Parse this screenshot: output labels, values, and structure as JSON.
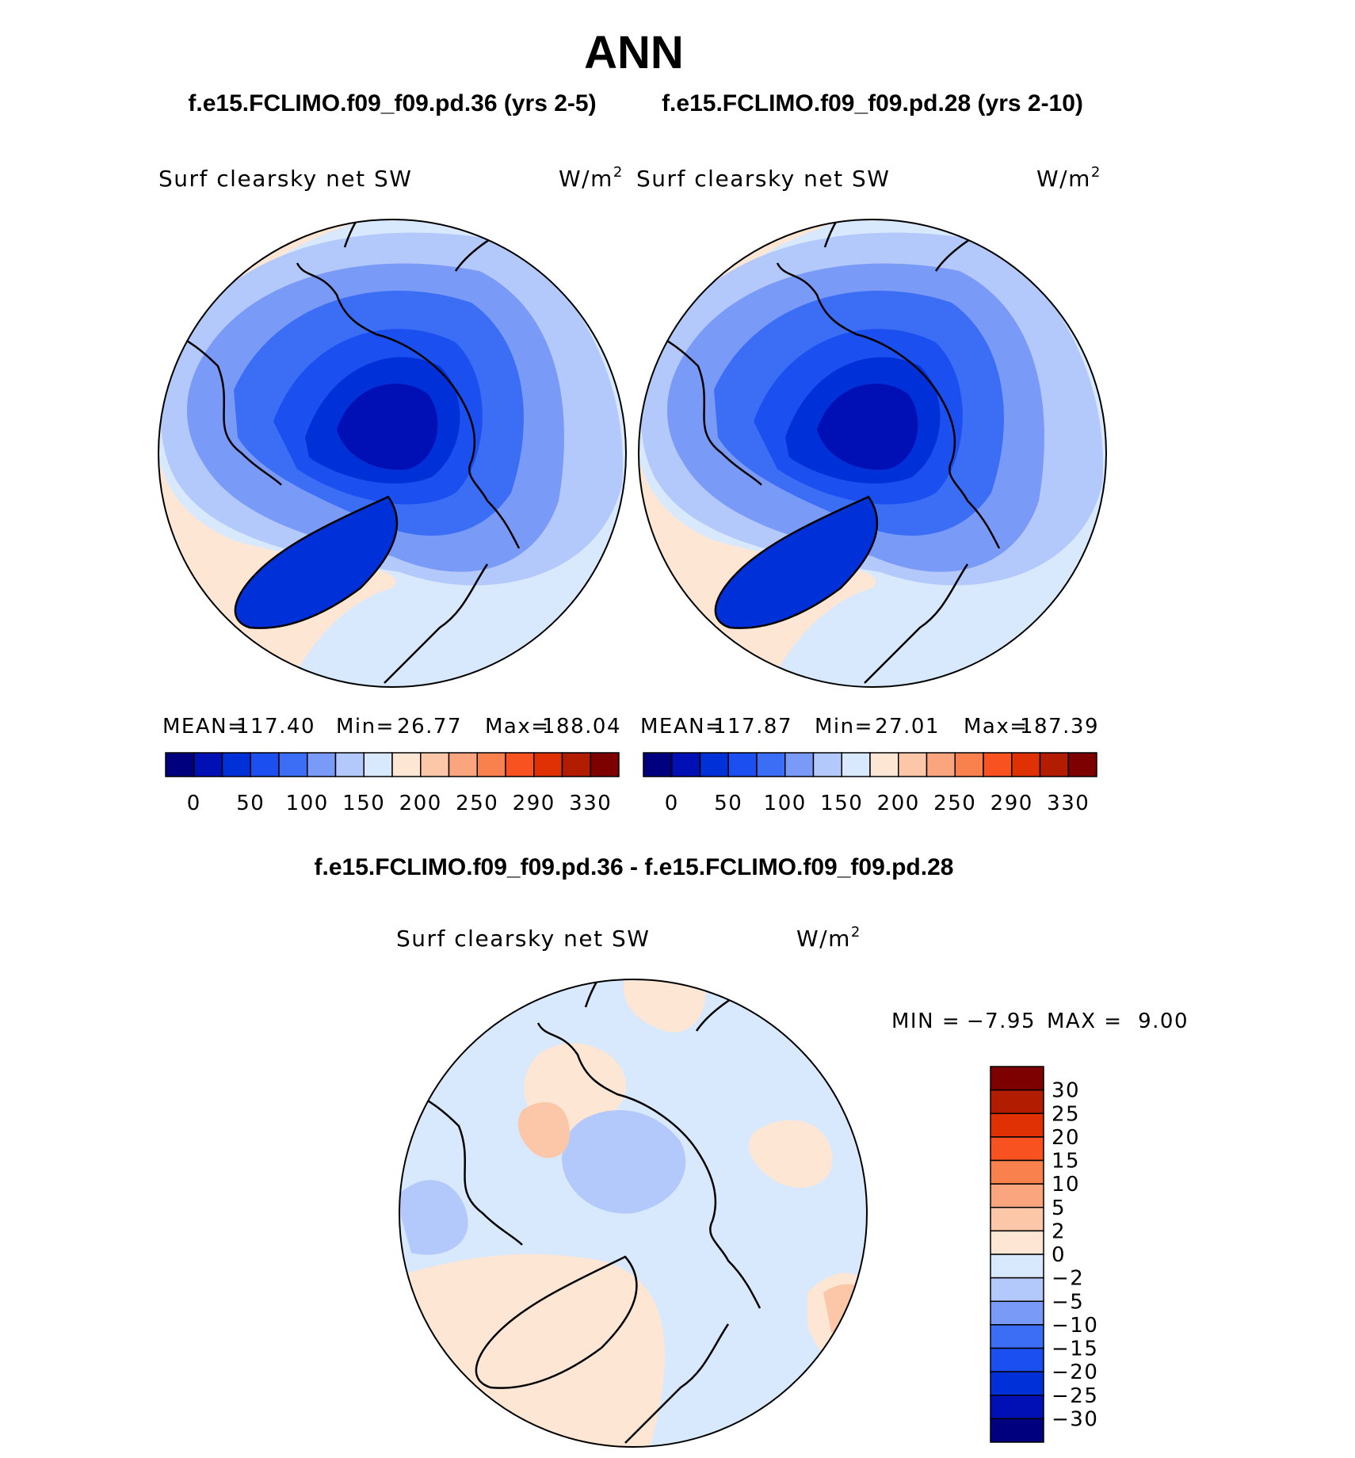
{
  "figure": {
    "title": "ANN",
    "case1_title": "f.e15.FCLIMO.f09_f09.pd.36 (yrs 2-5)",
    "case2_title": "f.e15.FCLIMO.f09_f09.pd.28 (yrs 2-10)",
    "diff_title": "f.e15.FCLIMO.f09_f09.pd.36 - f.e15.FCLIMO.f09_f09.pd.28"
  },
  "chart_data": [
    {
      "type": "heatmap",
      "projection": "north polar stereographic",
      "variable": "Surf clearsky net SW",
      "units_base": "W/m",
      "units_exp": "2",
      "stats": {
        "mean_label": "MEAN=",
        "mean": "117.40",
        "min_label": "Min=",
        "min": "26.77",
        "max_label": "Max=",
        "max": "188.04"
      },
      "colorbar": {
        "orientation": "horizontal",
        "tick_labels": [
          "0",
          "50",
          "100",
          "150",
          "200",
          "250",
          "290",
          "330"
        ],
        "colors": [
          "#00007f",
          "#0010b4",
          "#0030d8",
          "#1b4ff0",
          "#3b6ef5",
          "#7a9af8",
          "#b3c8fb",
          "#d8e8fd",
          "#fde6d3",
          "#fcc7a8",
          "#fba57f",
          "#f9814e",
          "#f7521f",
          "#df3104",
          "#b21d01",
          "#7e0101"
        ]
      }
    },
    {
      "type": "heatmap",
      "projection": "north polar stereographic",
      "variable": "Surf clearsky net SW",
      "units_base": "W/m",
      "units_exp": "2",
      "stats": {
        "mean_label": "MEAN=",
        "mean": "117.87",
        "min_label": "Min=",
        "min": "27.01",
        "max_label": "Max=",
        "max": "187.39"
      },
      "colorbar": {
        "orientation": "horizontal",
        "tick_labels": [
          "0",
          "50",
          "100",
          "150",
          "200",
          "250",
          "290",
          "330"
        ],
        "colors": [
          "#00007f",
          "#0010b4",
          "#0030d8",
          "#1b4ff0",
          "#3b6ef5",
          "#7a9af8",
          "#b3c8fb",
          "#d8e8fd",
          "#fde6d3",
          "#fcc7a8",
          "#fba57f",
          "#f9814e",
          "#f7521f",
          "#df3104",
          "#b21d01",
          "#7e0101"
        ]
      }
    },
    {
      "type": "heatmap",
      "projection": "north polar stereographic",
      "variable": "Surf clearsky net SW",
      "units_base": "W/m",
      "units_exp": "2",
      "stats": {
        "min_label": "MIN =",
        "min": "−7.95",
        "max_label": "MAX =",
        "max": "9.00"
      },
      "colorbar": {
        "orientation": "vertical",
        "tick_labels": [
          "30",
          "25",
          "20",
          "15",
          "10",
          "5",
          "2",
          "0",
          "−2",
          "−5",
          "−10",
          "−15",
          "−20",
          "−25",
          "−30"
        ],
        "colors": [
          "#7e0101",
          "#b21d01",
          "#df3104",
          "#f7521f",
          "#f9814e",
          "#fba57f",
          "#fcc7a8",
          "#fde6d3",
          "#d8e8fd",
          "#b3c8fb",
          "#7a9af8",
          "#3b6ef5",
          "#1b4ff0",
          "#0030d8",
          "#0010b4",
          "#00007f"
        ]
      }
    }
  ]
}
